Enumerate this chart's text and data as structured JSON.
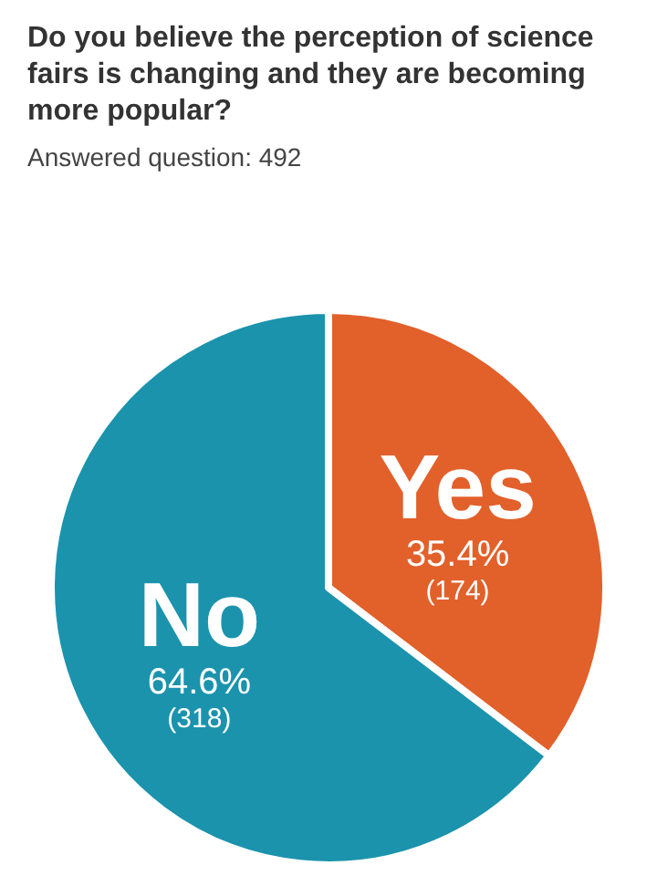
{
  "chart_data": {
    "type": "pie",
    "title": "Do you believe the perception of science fairs is changing and they are becoming more popular?",
    "subtitle": "Answered question: 492",
    "categories": [
      "Yes",
      "No"
    ],
    "values": [
      174,
      318
    ],
    "value_labels": [
      "35.4%\n(174)",
      "64.6%\n(318)"
    ],
    "colors": [
      "#e2602a",
      "#1b93ad"
    ],
    "legend": false
  }
}
